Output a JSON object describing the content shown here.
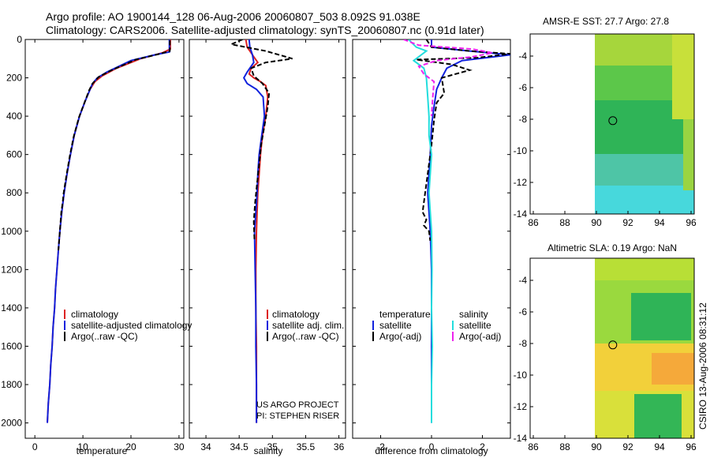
{
  "title_line1": "Argo profile: AO 1900144_128 06-Aug-2006 20060807_503 8.092S 91.038E",
  "title_line2": "Climatology: CARS2006. Satellite-adjusted climatology: synTS_20060807.nc (0.91d later)",
  "credit": "CSIRO 13-Aug-2006 08:31:12",
  "project_line1": "US ARGO PROJECT",
  "project_line2": "PI: STEPHEN RISER",
  "colors": {
    "climatology": "#dd2222",
    "satellite": "#1122dd",
    "argo": "#000000",
    "sal_satellite": "#22dddd",
    "sal_argo": "#ee22ee"
  },
  "chart_data": [
    {
      "type": "line",
      "title": "",
      "xlabel": "temperature",
      "ylabel": "",
      "xlim": [
        -2,
        31
      ],
      "ylim": [
        2080,
        0
      ],
      "xticks": [
        0,
        10,
        20,
        30
      ],
      "yticks": [
        0,
        200,
        400,
        600,
        800,
        1000,
        1200,
        1400,
        1600,
        1800,
        2000
      ],
      "legend": [
        "climatology",
        "satellite-adjusted climatology",
        "Argo(..raw -QC)"
      ],
      "series": [
        {
          "name": "climatology",
          "color": "#dd2222",
          "points": [
            [
              28.2,
              0
            ],
            [
              28.2,
              50
            ],
            [
              26.5,
              70
            ],
            [
              22,
              100
            ],
            [
              17,
              150
            ],
            [
              14,
              190
            ],
            [
              12.5,
              220
            ],
            [
              11.5,
              260
            ],
            [
              10.5,
              320
            ],
            [
              9.3,
              400
            ],
            [
              8.2,
              500
            ],
            [
              7.4,
              600
            ],
            [
              6.7,
              700
            ],
            [
              6.1,
              800
            ],
            [
              5.6,
              900
            ],
            [
              5.2,
              1000
            ],
            [
              4.9,
              1100
            ],
            [
              4.6,
              1200
            ],
            [
              4.3,
              1300
            ],
            [
              4.1,
              1400
            ],
            [
              3.8,
              1500
            ],
            [
              3.6,
              1600
            ],
            [
              3.3,
              1700
            ],
            [
              3.1,
              1800
            ],
            [
              2.8,
              1900
            ],
            [
              2.6,
              2000
            ]
          ]
        },
        {
          "name": "satellite",
          "color": "#1122dd",
          "points": [
            [
              28,
              0
            ],
            [
              28,
              65
            ],
            [
              25,
              80
            ],
            [
              20,
              110
            ],
            [
              15,
              170
            ],
            [
              13,
              200
            ],
            [
              12,
              230
            ],
            [
              11.5,
              260
            ],
            [
              10.5,
              320
            ],
            [
              9.3,
              400
            ],
            [
              8.2,
              500
            ],
            [
              7.4,
              600
            ],
            [
              6.7,
              700
            ],
            [
              6.1,
              800
            ],
            [
              5.6,
              900
            ],
            [
              5.2,
              1000
            ],
            [
              4.9,
              1100
            ],
            [
              4.6,
              1200
            ],
            [
              4.3,
              1300
            ],
            [
              4.1,
              1400
            ],
            [
              3.8,
              1500
            ],
            [
              3.6,
              1600
            ],
            [
              3.3,
              1700
            ],
            [
              3.1,
              1800
            ],
            [
              2.8,
              1900
            ],
            [
              2.6,
              2000
            ]
          ]
        },
        {
          "name": "Argo",
          "color": "#000000",
          "dashed": true,
          "points": [
            [
              28.1,
              5
            ],
            [
              28.1,
              60
            ],
            [
              26,
              75
            ],
            [
              21,
              105
            ],
            [
              16,
              160
            ],
            [
              13.3,
              195
            ],
            [
              12,
              230
            ],
            [
              11.3,
              265
            ],
            [
              10.4,
              325
            ],
            [
              9.2,
              405
            ],
            [
              8.1,
              505
            ],
            [
              7.3,
              605
            ],
            [
              6.6,
              705
            ],
            [
              6.0,
              800
            ],
            [
              5.8,
              850
            ],
            [
              5.5,
              900
            ],
            [
              5.2,
              1000
            ],
            [
              4.9,
              1100
            ]
          ]
        }
      ]
    },
    {
      "type": "line",
      "xlabel": "salinity",
      "xlim": [
        33.75,
        36.1
      ],
      "ylim": [
        2080,
        0
      ],
      "xticks": [
        34,
        34.5,
        35,
        35.5,
        36
      ],
      "legend": [
        "climatology",
        "satellite adj. clim.",
        "Argo(..raw -QC)"
      ],
      "series": [
        {
          "name": "climatology",
          "color": "#dd2222",
          "points": [
            [
              34.6,
              0
            ],
            [
              34.62,
              40
            ],
            [
              34.66,
              60
            ],
            [
              34.72,
              90
            ],
            [
              34.78,
              120
            ],
            [
              34.68,
              150
            ],
            [
              34.65,
              180
            ],
            [
              34.72,
              200
            ],
            [
              34.82,
              220
            ],
            [
              34.9,
              240
            ],
            [
              34.93,
              300
            ],
            [
              34.9,
              400
            ],
            [
              34.85,
              500
            ],
            [
              34.82,
              600
            ],
            [
              34.8,
              700
            ],
            [
              34.78,
              800
            ],
            [
              34.77,
              900
            ],
            [
              34.76,
              1000
            ],
            [
              34.75,
              1200
            ],
            [
              34.75,
              1400
            ],
            [
              34.76,
              1600
            ],
            [
              34.76,
              1800
            ],
            [
              34.76,
              2000
            ]
          ]
        },
        {
          "name": "satellite",
          "color": "#1122dd",
          "points": [
            [
              34.65,
              0
            ],
            [
              34.66,
              40
            ],
            [
              34.7,
              80
            ],
            [
              34.72,
              120
            ],
            [
              34.62,
              170
            ],
            [
              34.57,
              200
            ],
            [
              34.62,
              230
            ],
            [
              34.76,
              260
            ],
            [
              34.86,
              300
            ],
            [
              34.88,
              400
            ],
            [
              34.84,
              500
            ],
            [
              34.8,
              600
            ],
            [
              34.78,
              700
            ],
            [
              34.77,
              800
            ],
            [
              34.75,
              900
            ],
            [
              34.73,
              1000
            ],
            [
              34.74,
              1200
            ],
            [
              34.75,
              1400
            ],
            [
              34.75,
              1600
            ],
            [
              34.76,
              1800
            ],
            [
              34.76,
              2000
            ]
          ]
        },
        {
          "name": "Argo",
          "color": "#000000",
          "dashed": true,
          "points": [
            [
              34.55,
              0
            ],
            [
              34.38,
              25
            ],
            [
              34.6,
              40
            ],
            [
              34.9,
              60
            ],
            [
              35.1,
              80
            ],
            [
              35.3,
              100
            ],
            [
              34.9,
              120
            ],
            [
              34.68,
              150
            ],
            [
              34.72,
              190
            ],
            [
              34.85,
              230
            ],
            [
              34.95,
              280
            ],
            [
              34.93,
              350
            ],
            [
              34.88,
              450
            ],
            [
              34.83,
              550
            ],
            [
              34.8,
              650
            ],
            [
              34.77,
              750
            ],
            [
              34.74,
              850
            ],
            [
              34.72,
              950
            ],
            [
              34.73,
              1050
            ]
          ]
        }
      ]
    },
    {
      "type": "line",
      "xlabel": "difference from climatology",
      "xlim": [
        -3.1,
        3.1
      ],
      "ylim": [
        2080,
        0
      ],
      "xticks": [
        -2,
        0,
        2
      ],
      "legend": [
        "temperature",
        "satellite",
        "Argo(-adj)",
        "salinity",
        "satellite",
        "Argo(-adj)"
      ],
      "series": [
        {
          "name": "temperature satellite",
          "color": "#1122dd",
          "points": [
            [
              0,
              0
            ],
            [
              0,
              40
            ],
            [
              1.5,
              60
            ],
            [
              3.1,
              80
            ],
            [
              1.2,
              110
            ],
            [
              0.6,
              150
            ],
            [
              0.4,
              200
            ],
            [
              0.2,
              260
            ],
            [
              0.1,
              350
            ],
            [
              0,
              450
            ],
            [
              -0.05,
              600
            ],
            [
              -0.1,
              700
            ],
            [
              -0.15,
              800
            ],
            [
              -0.1,
              900
            ],
            [
              -0.05,
              1000
            ],
            [
              0,
              1200
            ],
            [
              0,
              1400
            ],
            [
              0,
              1600
            ],
            [
              0,
              1800
            ],
            [
              0,
              2000
            ]
          ]
        },
        {
          "name": "temperature Argo",
          "color": "#000000",
          "dashed": true,
          "points": [
            [
              -0.2,
              0
            ],
            [
              0,
              40
            ],
            [
              1.5,
              60
            ],
            [
              3.1,
              75
            ],
            [
              1.8,
              95
            ],
            [
              -0.6,
              105
            ],
            [
              0.8,
              130
            ],
            [
              1.5,
              160
            ],
            [
              0.4,
              200
            ],
            [
              0.5,
              280
            ],
            [
              0.2,
              330
            ],
            [
              0.1,
              420
            ],
            [
              0,
              550
            ],
            [
              -0.15,
              700
            ],
            [
              -0.3,
              850
            ],
            [
              -0.35,
              900
            ],
            [
              -0.2,
              940
            ],
            [
              -0.3,
              970
            ],
            [
              -0.1,
              1000
            ],
            [
              -0.05,
              1050
            ]
          ]
        },
        {
          "name": "salinity satellite",
          "color": "#22dddd",
          "points": [
            [
              -0.9,
              0
            ],
            [
              -0.6,
              40
            ],
            [
              -0.2,
              60
            ],
            [
              -0.7,
              110
            ],
            [
              -0.3,
              150
            ],
            [
              -0.2,
              200
            ],
            [
              -0.15,
              300
            ],
            [
              -0.1,
              400
            ],
            [
              -0.1,
              500
            ],
            [
              0,
              600
            ],
            [
              -0.05,
              700
            ],
            [
              -0.1,
              800
            ],
            [
              -0.05,
              900
            ],
            [
              0,
              1000
            ],
            [
              0.02,
              1200
            ],
            [
              0,
              1400
            ],
            [
              0.03,
              1600
            ],
            [
              0,
              1800
            ],
            [
              0,
              2000
            ]
          ]
        },
        {
          "name": "salinity Argo",
          "color": "#ee22ee",
          "dashed": true,
          "points": [
            [
              -1.1,
              0
            ],
            [
              -0.5,
              30
            ],
            [
              1.6,
              50
            ],
            [
              2.4,
              70
            ],
            [
              1.6,
              90
            ],
            [
              0.2,
              110
            ],
            [
              -0.5,
              140
            ],
            [
              -0.3,
              180
            ],
            [
              0.1,
              220
            ],
            [
              0.05,
              300
            ],
            [
              0,
              400
            ]
          ]
        }
      ]
    },
    {
      "type": "heatmap",
      "title": "AMSR-E SST: 27.7 Argo: 27.8",
      "xlim": [
        85.8,
        96.2
      ],
      "ylim": [
        -14,
        -2.6
      ],
      "xticks": [
        86,
        88,
        90,
        92,
        94,
        96
      ],
      "yticks": [
        -4,
        -6,
        -8,
        -10,
        -12,
        -14
      ],
      "data_xrange": [
        89.9,
        96.2
      ],
      "marker": [
        91.04,
        -8.09
      ],
      "palette": [
        {
          "x0": 89.9,
          "x1": 96.2,
          "y0": -2.6,
          "y1": -4.6,
          "color": "#a6d63c"
        },
        {
          "x0": 89.9,
          "x1": 96.2,
          "y0": -4.6,
          "y1": -6.8,
          "color": "#5cc74a"
        },
        {
          "x0": 89.9,
          "x1": 96.2,
          "y0": -6.8,
          "y1": -10.2,
          "color": "#2fb457"
        },
        {
          "x0": 89.9,
          "x1": 96.2,
          "y0": -10.2,
          "y1": -12.2,
          "color": "#4ec5a6"
        },
        {
          "x0": 89.9,
          "x1": 96.2,
          "y0": -12.2,
          "y1": -14,
          "color": "#47d8dc"
        },
        {
          "x0": 94.8,
          "x1": 96.2,
          "y0": -2.6,
          "y1": -8.0,
          "color": "#c8e03a"
        },
        {
          "x0": 95.5,
          "x1": 96.2,
          "y0": -8.0,
          "y1": -12.5,
          "color": "#9ad442"
        }
      ]
    },
    {
      "type": "heatmap",
      "title": "Altimetric SLA: 0.19 Argo: NaN",
      "xlim": [
        85.8,
        96.2
      ],
      "ylim": [
        -14,
        -2.6
      ],
      "xticks": [
        86,
        88,
        90,
        92,
        94,
        96
      ],
      "yticks": [
        -4,
        -6,
        -8,
        -10,
        -12,
        -14
      ],
      "data_xrange": [
        89.9,
        96.2
      ],
      "marker": [
        91.04,
        -8.09
      ],
      "palette": [
        {
          "x0": 89.9,
          "x1": 96.2,
          "y0": -2.6,
          "y1": -4.0,
          "color": "#b8df36"
        },
        {
          "x0": 89.9,
          "x1": 96.2,
          "y0": -4.0,
          "y1": -8.0,
          "color": "#9ad93e"
        },
        {
          "x0": 92.2,
          "x1": 96.0,
          "y0": -4.8,
          "y1": -7.8,
          "color": "#2fb457"
        },
        {
          "x0": 89.9,
          "x1": 96.2,
          "y0": -8.0,
          "y1": -11.0,
          "color": "#f2d03a"
        },
        {
          "x0": 93.5,
          "x1": 96.2,
          "y0": -8.6,
          "y1": -10.6,
          "color": "#f5a93a"
        },
        {
          "x0": 89.9,
          "x1": 96.2,
          "y0": -11.0,
          "y1": -14,
          "color": "#d9e03a"
        },
        {
          "x0": 92.4,
          "x1": 95.4,
          "y0": -11.2,
          "y1": -14,
          "color": "#33b656"
        }
      ]
    }
  ]
}
